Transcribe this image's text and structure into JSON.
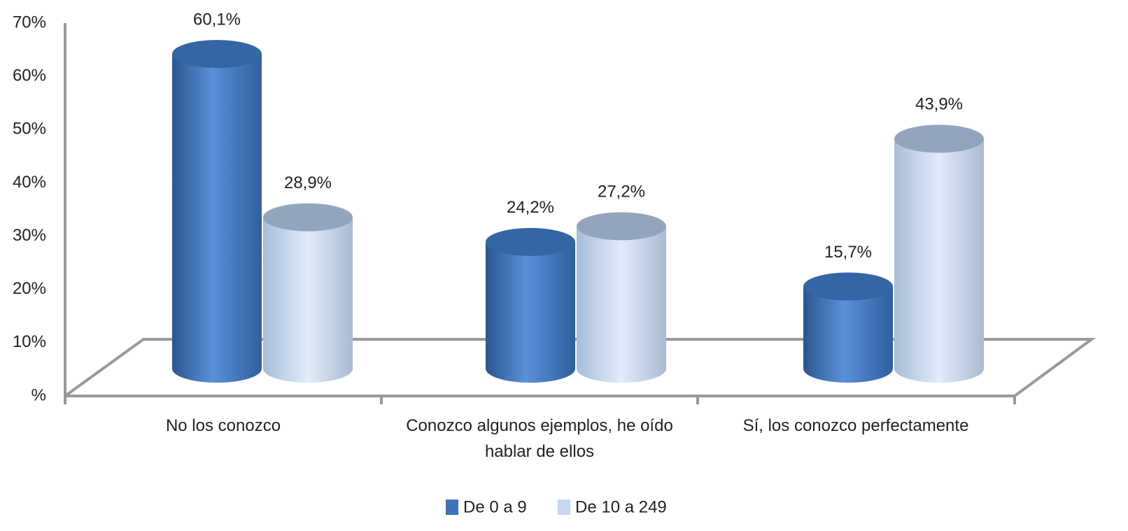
{
  "chart_data": {
    "type": "bar3d",
    "categories": [
      "No los conozco",
      "Conozco algunos ejemplos, he oído hablar de ellos",
      "Sí, los conozco perfectamente"
    ],
    "series": [
      {
        "name": "De 0 a 9",
        "color": "#4a7fc8",
        "values": [
          60.1,
          24.2,
          15.7
        ],
        "value_labels": [
          "60,1%",
          "24,2%",
          "15,7%"
        ]
      },
      {
        "name": "De 10 a 249",
        "color": "#c9dbf3",
        "values": [
          28.9,
          27.2,
          43.9
        ],
        "value_labels": [
          "28,9%",
          "27,2%",
          "43,9%"
        ]
      }
    ],
    "ylim": [
      0,
      70
    ],
    "yticks": [
      {
        "value": 0,
        "label": "%"
      },
      {
        "value": 10,
        "label": "10%"
      },
      {
        "value": 20,
        "label": "20%"
      },
      {
        "value": 30,
        "label": "30%"
      },
      {
        "value": 40,
        "label": "40%"
      },
      {
        "value": 50,
        "label": "50%"
      },
      {
        "value": 60,
        "label": "60%"
      },
      {
        "value": 70,
        "label": "70%"
      }
    ],
    "legend": "bottom"
  }
}
